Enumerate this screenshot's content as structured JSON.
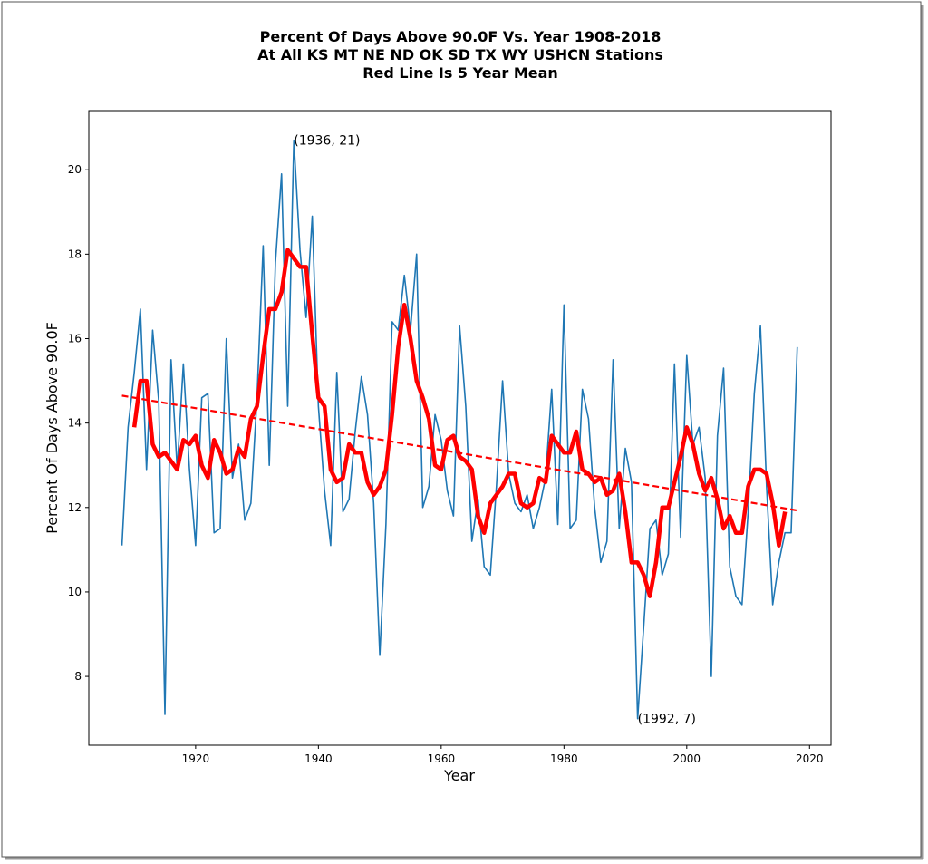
{
  "chart_data": {
    "type": "line",
    "title": [
      "Percent Of Days Above 90.0F Vs. Year 1908-2018",
      "At All KS MT NE ND OK SD TX WY USHCN Stations",
      "Red Line Is 5 Year Mean"
    ],
    "xlabel": "Year",
    "ylabel": "Percent Of Days Above 90.0F",
    "x": [
      1908,
      1909,
      1910,
      1911,
      1912,
      1913,
      1914,
      1915,
      1916,
      1917,
      1918,
      1919,
      1920,
      1921,
      1922,
      1923,
      1924,
      1925,
      1926,
      1927,
      1928,
      1929,
      1930,
      1931,
      1932,
      1933,
      1934,
      1935,
      1936,
      1937,
      1938,
      1939,
      1940,
      1941,
      1942,
      1943,
      1944,
      1945,
      1946,
      1947,
      1948,
      1949,
      1950,
      1951,
      1952,
      1953,
      1954,
      1955,
      1956,
      1957,
      1958,
      1959,
      1960,
      1961,
      1962,
      1963,
      1964,
      1965,
      1966,
      1967,
      1968,
      1969,
      1970,
      1971,
      1972,
      1973,
      1974,
      1975,
      1976,
      1977,
      1978,
      1979,
      1980,
      1981,
      1982,
      1983,
      1984,
      1985,
      1986,
      1987,
      1988,
      1989,
      1990,
      1991,
      1992,
      1993,
      1994,
      1995,
      1996,
      1997,
      1998,
      1999,
      2000,
      2001,
      2002,
      2003,
      2004,
      2005,
      2006,
      2007,
      2008,
      2009,
      2010,
      2011,
      2012,
      2013,
      2014,
      2015,
      2016,
      2017,
      2018
    ],
    "series": [
      {
        "color": "#1f77b4",
        "linestyle": "solid",
        "values": [
          11.1,
          13.9,
          15.2,
          16.7,
          12.9,
          16.2,
          14.5,
          7.1,
          15.5,
          12.9,
          15.4,
          12.9,
          11.1,
          14.6,
          14.7,
          11.4,
          11.5,
          16.0,
          12.7,
          13.5,
          11.7,
          12.1,
          14.6,
          18.2,
          13.0,
          17.8,
          19.9,
          14.4,
          20.7,
          18.1,
          16.5,
          18.9,
          14.4,
          12.4,
          11.1,
          15.2,
          11.9,
          12.2,
          13.8,
          15.1,
          14.2,
          12.1,
          8.5,
          11.6,
          16.4,
          16.2,
          17.5,
          16.2,
          18.0,
          12.0,
          12.5,
          14.2,
          13.6,
          12.4,
          11.8,
          16.3,
          14.4,
          11.2,
          12.2,
          10.6,
          10.4,
          12.5,
          15.0,
          12.8,
          12.1,
          11.9,
          12.3,
          11.5,
          12.0,
          12.7,
          14.8,
          11.6,
          16.8,
          11.5,
          11.7,
          14.8,
          14.1,
          12.0,
          10.7,
          11.2,
          15.5,
          11.5,
          13.4,
          12.6,
          7.0,
          9.2,
          11.5,
          11.7,
          10.4,
          10.9,
          15.4,
          11.3,
          15.6,
          13.5,
          13.9,
          12.7,
          8.0,
          13.7,
          15.3,
          10.6,
          9.9,
          9.7,
          11.9,
          14.7,
          16.3,
          12.5,
          9.7,
          10.7,
          11.4,
          11.4,
          15.8
        ]
      },
      {
        "color": "#ff0000",
        "linestyle": "bold",
        "values": [
          null,
          null,
          13.9,
          15.0,
          15.0,
          13.5,
          13.2,
          13.3,
          13.1,
          12.9,
          13.6,
          13.5,
          13.7,
          13.0,
          12.7,
          13.6,
          13.3,
          12.8,
          12.9,
          13.4,
          13.2,
          14.1,
          14.4,
          15.6,
          16.7,
          16.7,
          17.1,
          18.1,
          17.9,
          17.7,
          17.7,
          16.1,
          14.6,
          14.4,
          12.9,
          12.6,
          12.7,
          13.5,
          13.3,
          13.3,
          12.6,
          12.3,
          12.5,
          12.9,
          14.2,
          15.8,
          16.8,
          16.0,
          15.0,
          14.6,
          14.1,
          13.0,
          12.9,
          13.6,
          13.7,
          13.2,
          13.1,
          12.9,
          11.8,
          11.4,
          12.1,
          12.3,
          12.5,
          12.8,
          12.8,
          12.1,
          12.0,
          12.1,
          12.7,
          12.6,
          13.7,
          13.5,
          13.3,
          13.3,
          13.8,
          12.9,
          12.8,
          12.6,
          12.7,
          12.3,
          12.4,
          12.8,
          11.9,
          10.7,
          10.7,
          10.4,
          9.9,
          10.7,
          12.0,
          12.0,
          12.6,
          13.2,
          13.9,
          13.5,
          12.8,
          12.4,
          12.7,
          12.2,
          11.5,
          11.8,
          11.4,
          11.4,
          12.5,
          12.9,
          12.9,
          12.8,
          12.1,
          11.1,
          11.9,
          null,
          null
        ]
      },
      {
        "color": "#ff0000",
        "linestyle": "dashed",
        "x": [
          1908,
          2018
        ],
        "values": [
          14.65,
          11.93
        ]
      }
    ],
    "annotations": [
      {
        "text": "(1936, 21)",
        "x": 1936,
        "y": 20.7
      },
      {
        "text": "(1992, 7)",
        "x": 1992,
        "y": 7.0
      }
    ],
    "xlim": [
      1902.6,
      2023.5
    ],
    "ylim": [
      6.37,
      21.4
    ],
    "xticks": [
      1920,
      1940,
      1960,
      1980,
      2000,
      2020
    ],
    "yticks": [
      8,
      10,
      12,
      14,
      16,
      18,
      20
    ]
  }
}
